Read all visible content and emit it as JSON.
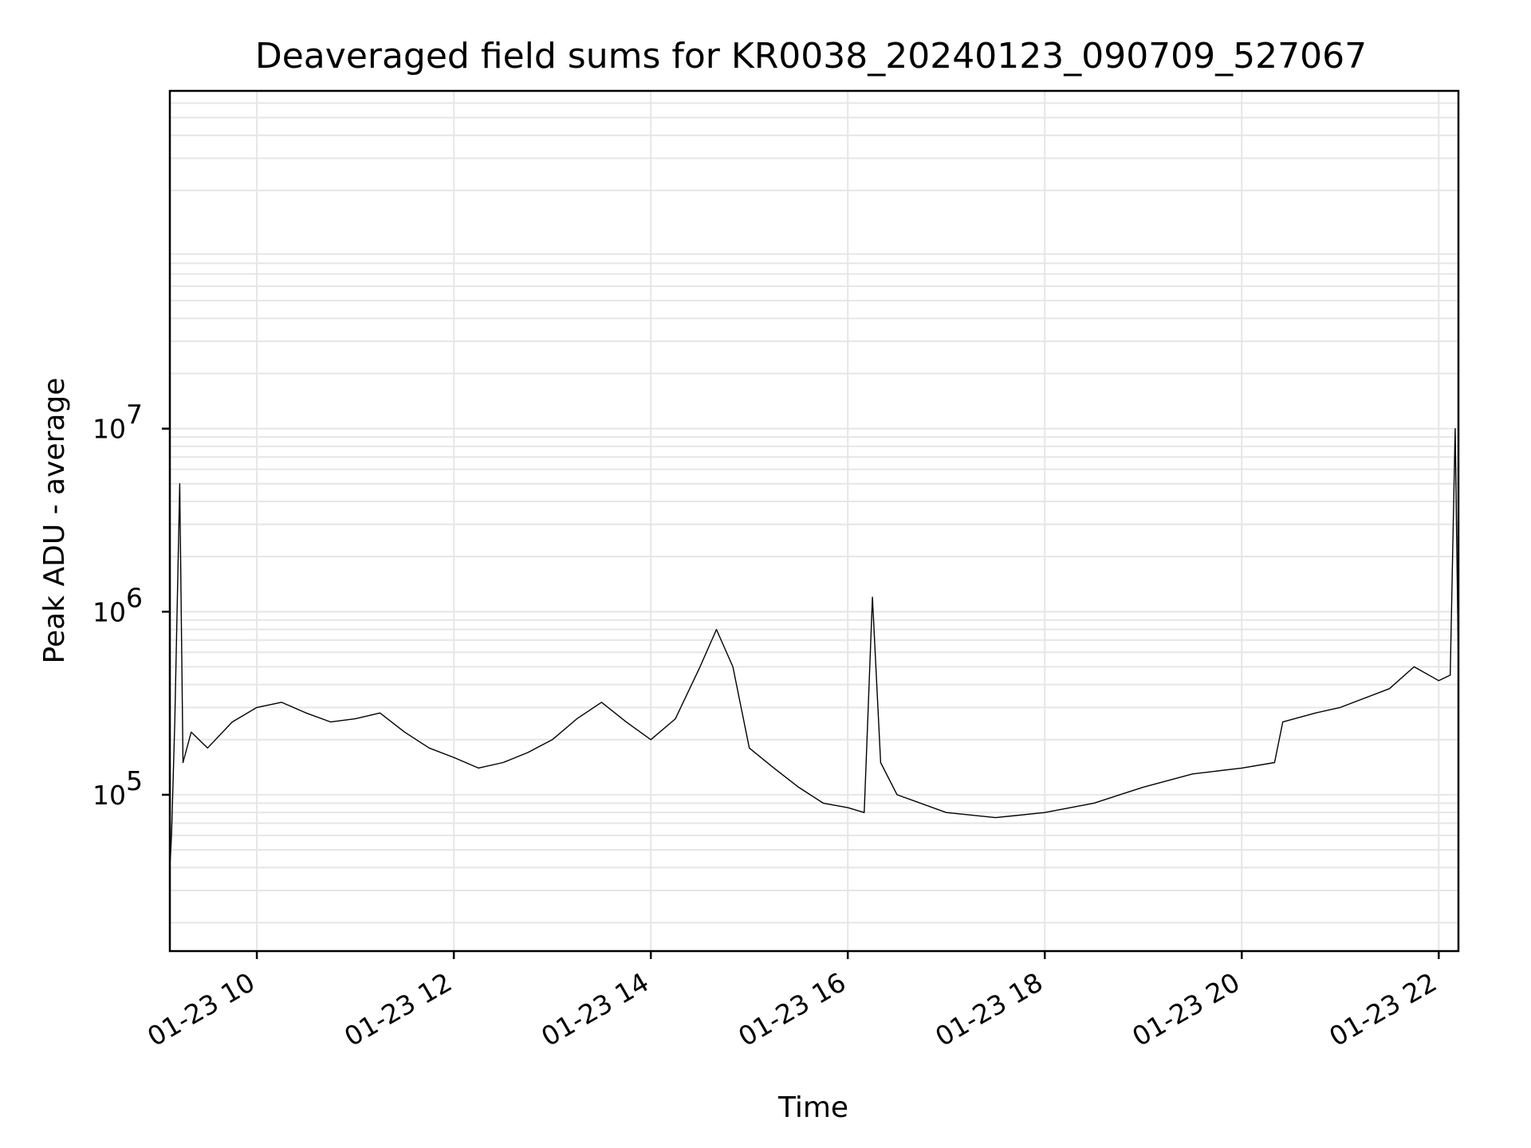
{
  "chart_data": {
    "type": "line",
    "title": "Deaveraged field sums for KR0038_20240123_090709_527067",
    "xlabel": "Time",
    "ylabel": "Peak ADU - average",
    "x_scale": "time",
    "y_scale": "log",
    "xlim": [
      "2024-01-23 09:07",
      "2024-01-23 22:12"
    ],
    "ylim": [
      14000,
      700000000
    ],
    "grid": true,
    "x_ticks": [
      "01-23 10",
      "01-23 12",
      "01-23 14",
      "01-23 16",
      "01-23 18",
      "01-23 20",
      "01-23 22"
    ],
    "y_ticks": [
      {
        "base": "10",
        "exp": "5",
        "value": 100000
      },
      {
        "base": "10",
        "exp": "6",
        "value": 1000000
      },
      {
        "base": "10",
        "exp": "7",
        "value": 10000000
      }
    ],
    "line_color": "#000000",
    "series": [
      {
        "name": "",
        "points": [
          [
            "2024-01-23 09:07",
            40000
          ],
          [
            "2024-01-23 09:08",
            60000
          ],
          [
            "2024-01-23 09:10",
            250000
          ],
          [
            "2024-01-23 09:13",
            5000000
          ],
          [
            "2024-01-23 09:15",
            150000
          ],
          [
            "2024-01-23 09:20",
            220000
          ],
          [
            "2024-01-23 09:30",
            180000
          ],
          [
            "2024-01-23 09:45",
            250000
          ],
          [
            "2024-01-23 10:00",
            300000
          ],
          [
            "2024-01-23 10:15",
            320000
          ],
          [
            "2024-01-23 10:30",
            280000
          ],
          [
            "2024-01-23 10:45",
            250000
          ],
          [
            "2024-01-23 11:00",
            260000
          ],
          [
            "2024-01-23 11:15",
            280000
          ],
          [
            "2024-01-23 11:30",
            220000
          ],
          [
            "2024-01-23 11:45",
            180000
          ],
          [
            "2024-01-23 12:00",
            160000
          ],
          [
            "2024-01-23 12:15",
            140000
          ],
          [
            "2024-01-23 12:30",
            150000
          ],
          [
            "2024-01-23 12:45",
            170000
          ],
          [
            "2024-01-23 13:00",
            200000
          ],
          [
            "2024-01-23 13:15",
            260000
          ],
          [
            "2024-01-23 13:30",
            320000
          ],
          [
            "2024-01-23 13:45",
            250000
          ],
          [
            "2024-01-23 14:00",
            200000
          ],
          [
            "2024-01-23 14:15",
            260000
          ],
          [
            "2024-01-23 14:30",
            500000
          ],
          [
            "2024-01-23 14:40",
            800000
          ],
          [
            "2024-01-23 14:50",
            500000
          ],
          [
            "2024-01-23 15:00",
            180000
          ],
          [
            "2024-01-23 15:15",
            140000
          ],
          [
            "2024-01-23 15:30",
            110000
          ],
          [
            "2024-01-23 15:45",
            90000
          ],
          [
            "2024-01-23 16:00",
            85000
          ],
          [
            "2024-01-23 16:10",
            80000
          ],
          [
            "2024-01-23 16:15",
            1200000
          ],
          [
            "2024-01-23 16:20",
            150000
          ],
          [
            "2024-01-23 16:30",
            100000
          ],
          [
            "2024-01-23 17:00",
            80000
          ],
          [
            "2024-01-23 17:30",
            75000
          ],
          [
            "2024-01-23 18:00",
            80000
          ],
          [
            "2024-01-23 18:30",
            90000
          ],
          [
            "2024-01-23 19:00",
            110000
          ],
          [
            "2024-01-23 19:30",
            130000
          ],
          [
            "2024-01-23 20:00",
            140000
          ],
          [
            "2024-01-23 20:20",
            150000
          ],
          [
            "2024-01-23 20:25",
            250000
          ],
          [
            "2024-01-23 20:45",
            280000
          ],
          [
            "2024-01-23 21:00",
            300000
          ],
          [
            "2024-01-23 21:30",
            380000
          ],
          [
            "2024-01-23 21:45",
            500000
          ],
          [
            "2024-01-23 22:00",
            420000
          ],
          [
            "2024-01-23 22:07",
            450000
          ],
          [
            "2024-01-23 22:10",
            10000000
          ],
          [
            "2024-01-23 22:12",
            500000
          ]
        ]
      }
    ]
  }
}
